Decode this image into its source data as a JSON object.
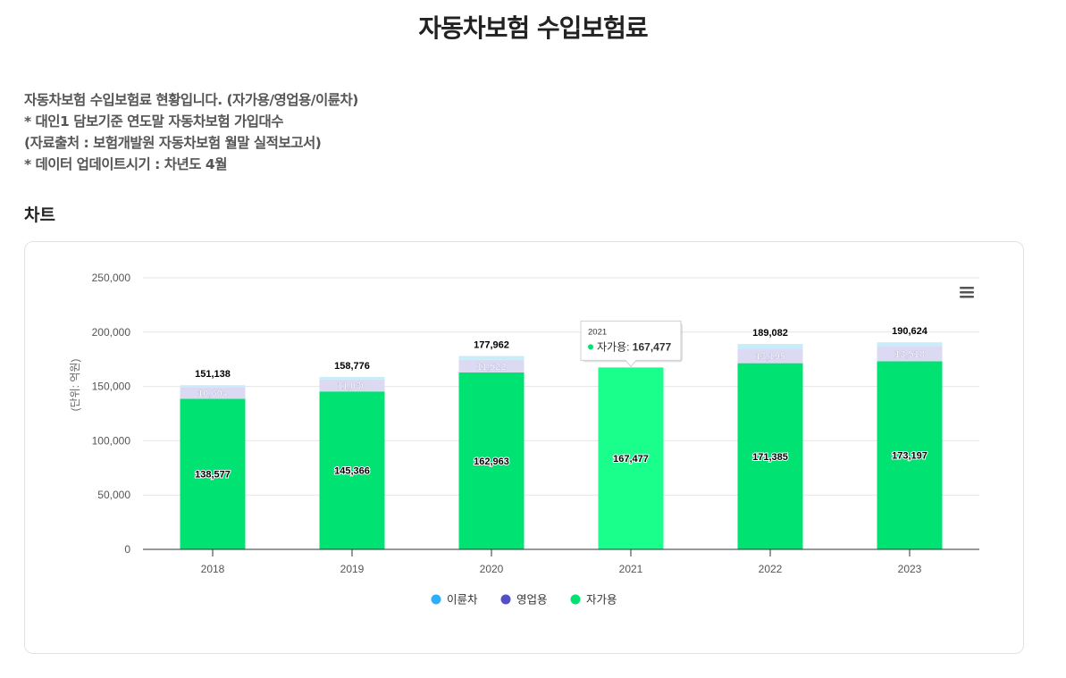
{
  "page": {
    "title": "자동차보험 수입보험료",
    "description": [
      "자동차보험 수입보험료 현황입니다. (자가용/영업용/이륜차)",
      "* 대인1 담보기준 연도말 자동차보험 가입대수",
      "(자료출처 : 보험개발원 자동차보험 월말 실적보고서)",
      "* 데이터 업데이트시기 : 차년도 4월"
    ],
    "section_title": "차트"
  },
  "tooltip": {
    "year": "2021",
    "series_label": "자가용:",
    "value": "167,477"
  },
  "colors": {
    "private": "#00e272",
    "private_hover": "#1aff8c",
    "commercial": "#dcd9f2",
    "motorcycle": "#c8ecfa",
    "legend_motorcycle": "#2caffe",
    "legend_commercial": "#544fc5",
    "legend_private": "#00e272"
  },
  "chart_data": {
    "type": "bar",
    "stacked": true,
    "categories": [
      "2018",
      "2019",
      "2020",
      "2021",
      "2022",
      "2023"
    ],
    "series": [
      {
        "name": "자가용",
        "values": [
          138577,
          145366,
          162963,
          167477,
          171385,
          173197
        ],
        "labels": [
          "138,577",
          "145,366",
          "162,963",
          "167,477",
          "171,385",
          "173,197"
        ]
      },
      {
        "name": "영업용",
        "values": [
          10604,
          11030,
          11522,
          null,
          13195,
          13518
        ],
        "labels": [
          "10,604",
          "11,030",
          "11,522",
          "",
          "13,195",
          "13,518"
        ]
      },
      {
        "name": "이륜차",
        "values": [
          1957,
          2380,
          3477,
          null,
          4502,
          3909
        ],
        "labels": [
          "",
          "",
          "",
          "",
          "",
          ""
        ]
      }
    ],
    "totals": [
      "151,138",
      "158,776",
      "177,962",
      "",
      "189,082",
      "190,624"
    ],
    "ylabel": "(단위: 억원)",
    "ylim": [
      0,
      250000
    ],
    "yticks": [
      "0",
      "50,000",
      "100,000",
      "150,000",
      "200,000",
      "250,000"
    ],
    "ytick_values": [
      0,
      50000,
      100000,
      150000,
      200000,
      250000
    ],
    "legend": [
      "이륜차",
      "영업용",
      "자가용"
    ],
    "legend_position": "bottom-center",
    "grid": true,
    "highlighted_category": "2021"
  }
}
